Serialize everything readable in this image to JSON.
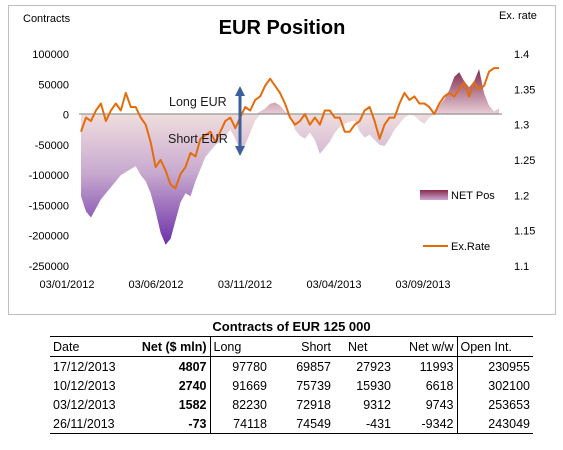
{
  "chart_data": {
    "type": "area",
    "title": "EUR Position",
    "y_left_label": "Contracts",
    "y_right_label": "Ex. rate",
    "y_left_ticks": [
      "100000",
      "50000",
      "0",
      "-50000",
      "-100000",
      "-150000",
      "-200000",
      "-250000"
    ],
    "y_right_ticks": [
      "1.4",
      "1.35",
      "1.3",
      "1.25",
      "1.2",
      "1.15",
      "1.1"
    ],
    "x_ticks": [
      "03/01/2012",
      "03/06/2012",
      "03/11/2012",
      "03/04/2013",
      "03/09/2013"
    ],
    "ylim_left": [
      -250000,
      100000
    ],
    "ylim_right": [
      1.1,
      1.4
    ],
    "annotations": {
      "long": "Long EUR",
      "short": "Short EUR"
    },
    "legend": {
      "placement": "right",
      "net": "NET Pos",
      "rate": "Ex.Rate"
    },
    "colors": {
      "area_negative": "#7b3fb8",
      "area_positive": "#8b2a4a",
      "rate_line": "#e46c0a",
      "arrow": "#3a5f9a"
    },
    "series": [
      {
        "name": "NET Pos",
        "x": [
          0,
          5,
          10,
          15,
          20,
          25,
          30,
          35,
          40,
          45,
          50,
          55,
          60,
          65,
          70,
          75,
          80,
          85,
          90,
          95,
          100,
          105,
          110,
          115,
          120,
          125,
          130,
          135,
          140,
          145,
          150,
          155,
          160,
          165,
          170,
          175,
          180,
          185,
          190,
          195,
          200,
          205,
          210,
          215,
          220,
          225,
          230,
          235,
          240,
          245,
          250,
          255,
          260,
          265,
          270,
          275,
          280,
          285,
          290,
          295,
          300,
          305,
          310,
          315,
          320,
          325,
          330,
          335,
          340,
          345,
          350,
          355,
          360,
          365,
          370,
          375,
          380,
          385,
          390,
          395,
          400,
          405,
          410,
          415,
          420
        ],
        "values": [
          -135000,
          -160000,
          -170000,
          -155000,
          -140000,
          -130000,
          -120000,
          -110000,
          -100000,
          -95000,
          -90000,
          -85000,
          -100000,
          -110000,
          -130000,
          -160000,
          -195000,
          -215000,
          -205000,
          -175000,
          -145000,
          -130000,
          -135000,
          -110000,
          -90000,
          -70000,
          -60000,
          -50000,
          -45000,
          -35000,
          -25000,
          -40000,
          -60000,
          -50000,
          -30000,
          -10000,
          5000,
          10000,
          18000,
          20000,
          15000,
          5000,
          -3000,
          -25000,
          -35000,
          -40000,
          -30000,
          -42000,
          -65000,
          -55000,
          -45000,
          -30000,
          -20000,
          -15000,
          -12000,
          -10000,
          -28000,
          -38000,
          -33000,
          -42000,
          -50000,
          -52000,
          -40000,
          -25000,
          -15000,
          -5000,
          0,
          -2000,
          -10000,
          -15000,
          -5000,
          5000,
          15000,
          25000,
          40000,
          62000,
          70000,
          55000,
          45000,
          55000,
          75000,
          35000,
          15000,
          5000,
          10000
        ]
      },
      {
        "name": "Ex.Rate",
        "x": [
          0,
          5,
          10,
          15,
          20,
          25,
          30,
          35,
          40,
          45,
          50,
          55,
          60,
          65,
          70,
          75,
          80,
          85,
          90,
          95,
          100,
          105,
          110,
          115,
          120,
          125,
          130,
          135,
          140,
          145,
          150,
          155,
          160,
          165,
          170,
          175,
          180,
          185,
          190,
          195,
          200,
          205,
          210,
          215,
          220,
          225,
          230,
          235,
          240,
          245,
          250,
          255,
          260,
          265,
          270,
          275,
          280,
          285,
          290,
          295,
          300,
          305,
          310,
          315,
          320,
          325,
          330,
          335,
          340,
          345,
          350,
          355,
          360,
          365,
          370,
          375,
          380,
          385,
          390,
          395,
          400,
          405,
          410,
          415,
          420
        ],
        "values": [
          1.29,
          1.31,
          1.305,
          1.32,
          1.33,
          1.305,
          1.32,
          1.33,
          1.32,
          1.345,
          1.325,
          1.325,
          1.31,
          1.3,
          1.275,
          1.24,
          1.25,
          1.235,
          1.215,
          1.21,
          1.23,
          1.24,
          1.26,
          1.255,
          1.28,
          1.285,
          1.29,
          1.275,
          1.29,
          1.305,
          1.31,
          1.295,
          1.31,
          1.325,
          1.32,
          1.335,
          1.34,
          1.355,
          1.365,
          1.355,
          1.345,
          1.33,
          1.31,
          1.3,
          1.305,
          1.315,
          1.3,
          1.31,
          1.3,
          1.32,
          1.32,
          1.31,
          1.31,
          1.29,
          1.29,
          1.3,
          1.305,
          1.32,
          1.325,
          1.305,
          1.28,
          1.3,
          1.31,
          1.31,
          1.33,
          1.345,
          1.335,
          1.34,
          1.33,
          1.33,
          1.325,
          1.315,
          1.33,
          1.34,
          1.345,
          1.34,
          1.35,
          1.36,
          1.34,
          1.36,
          1.35,
          1.355,
          1.375,
          1.38,
          1.38
        ]
      }
    ]
  },
  "table": {
    "title": "Contracts of EUR 125 000",
    "headers": [
      "Date",
      "Net ($ mln)",
      "Long",
      "Short",
      "Net",
      "Net w/w",
      "Open Int."
    ],
    "rows": [
      [
        "17/12/2013",
        "4807",
        "97780",
        "69857",
        "27923",
        "11993",
        "230955"
      ],
      [
        "10/12/2013",
        "2740",
        "91669",
        "75739",
        "15930",
        "6618",
        "302100"
      ],
      [
        "03/12/2013",
        "1582",
        "82230",
        "72918",
        "9312",
        "9743",
        "253653"
      ],
      [
        "26/11/2013",
        "-73",
        "74118",
        "74549",
        "-431",
        "-9342",
        "243049"
      ]
    ]
  }
}
